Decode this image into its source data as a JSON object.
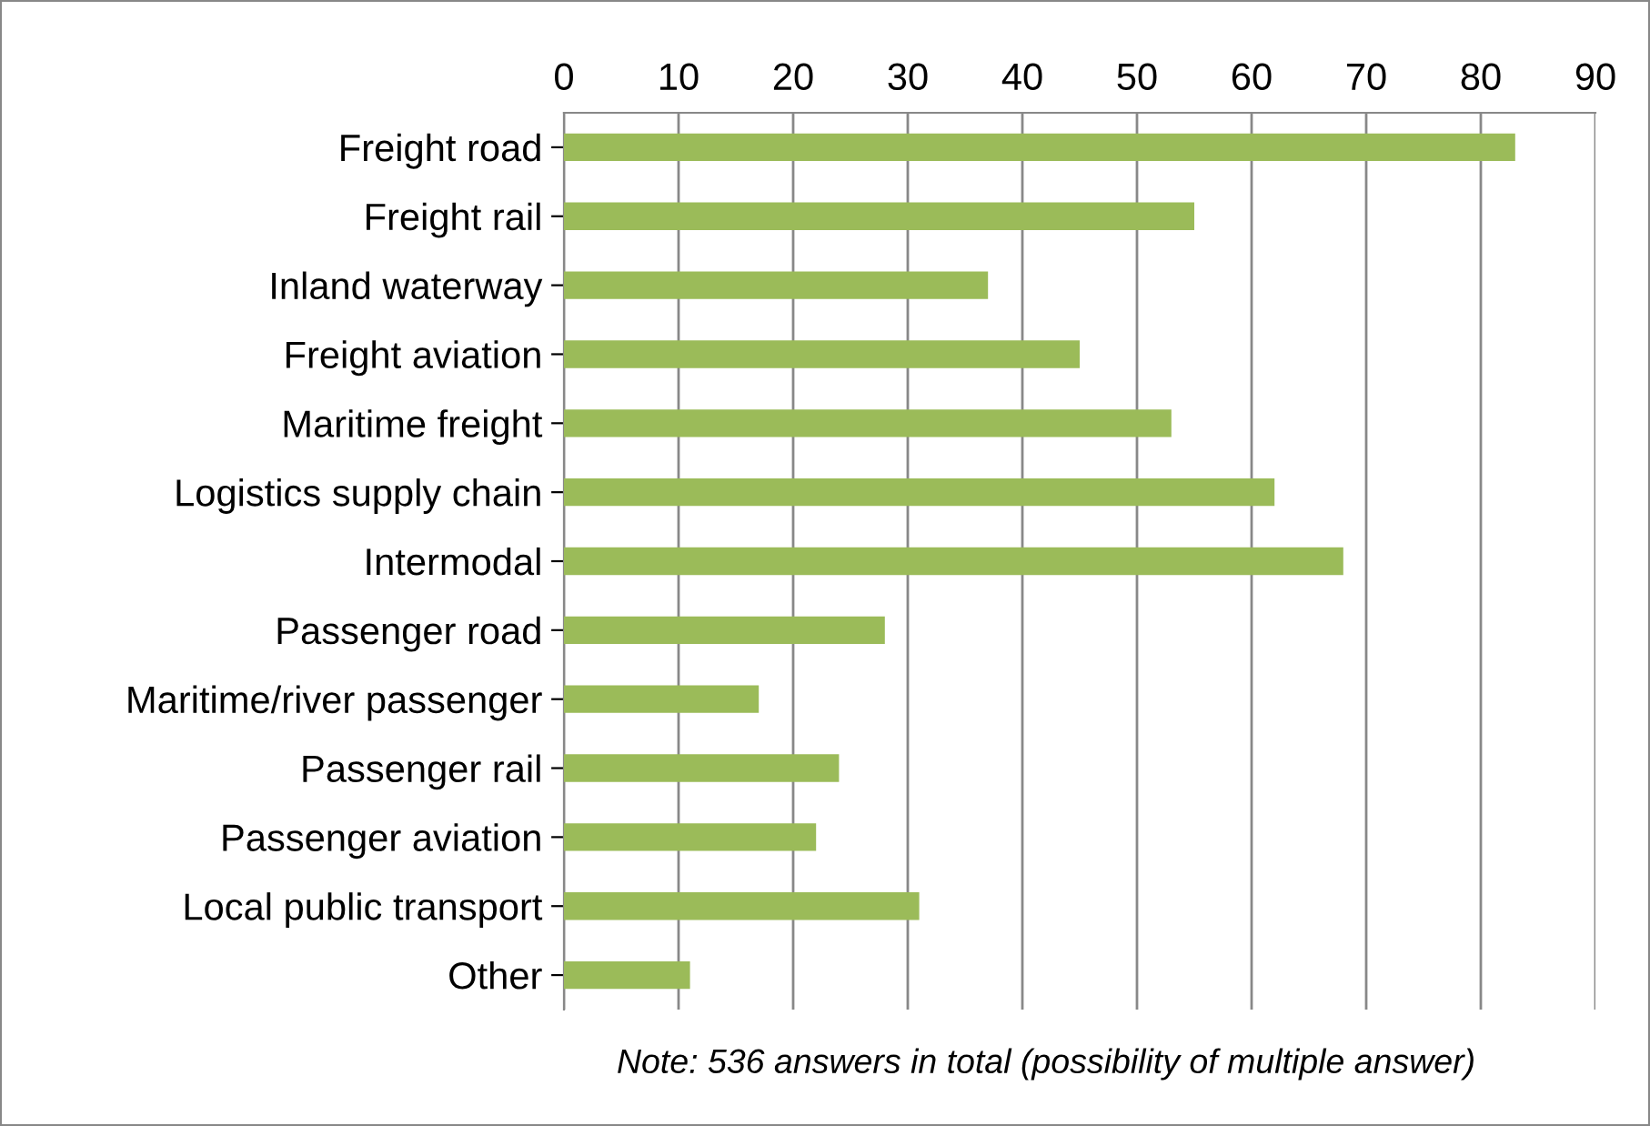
{
  "chart_data": {
    "type": "bar",
    "orientation": "horizontal",
    "categories": [
      "Freight road",
      "Freight rail",
      "Inland waterway",
      "Freight aviation",
      "Maritime freight",
      "Logistics supply chain",
      "Intermodal",
      "Passenger road",
      "Maritime/river passenger",
      "Passenger rail",
      "Passenger aviation",
      "Local public transport",
      "Other"
    ],
    "values": [
      83,
      55,
      37,
      45,
      53,
      62,
      68,
      28,
      17,
      24,
      22,
      31,
      11
    ],
    "color": "#9bbb59",
    "xlim": [
      0,
      90
    ],
    "xticks": [
      0,
      10,
      20,
      30,
      40,
      50,
      60,
      70,
      80,
      90
    ],
    "grid": "x",
    "annotations": [
      "Note: 536 answers in total (possibility of multiple answer)"
    ]
  }
}
